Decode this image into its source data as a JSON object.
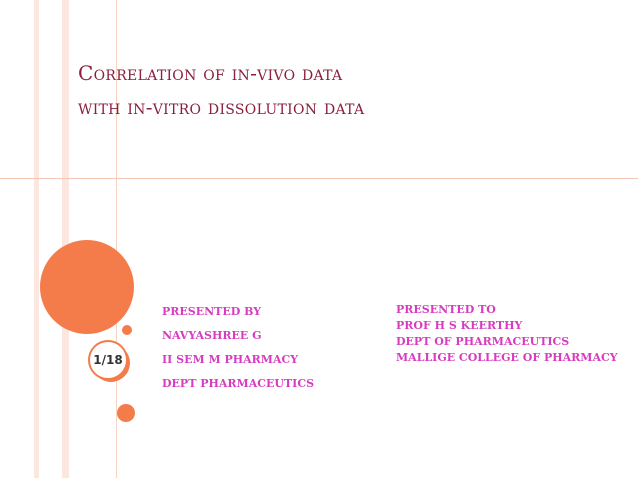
{
  "slide": {
    "title_line1": "Correlation of in-vivo data",
    "title_line2": "with in-vitro dissolution data",
    "slide_number": "1/18",
    "presented_by": {
      "heading": "PRESENTED BY",
      "lines": [
        "NAVYASHREE G",
        "II SEM M PHARMACY",
        "DEPT PHARMACEUTICS"
      ]
    },
    "presented_to": {
      "heading": "PRESENTED TO",
      "lines": [
        "PROF H S KEERTHY",
        "DEPT OF PHARMACEUTICS",
        "MALLIGE COLLEGE OF PHARMACY"
      ]
    }
  },
  "colors": {
    "title": "#8b1f3d",
    "accent_orange": "#f47c4a",
    "text_magenta": "#d63bc0"
  }
}
